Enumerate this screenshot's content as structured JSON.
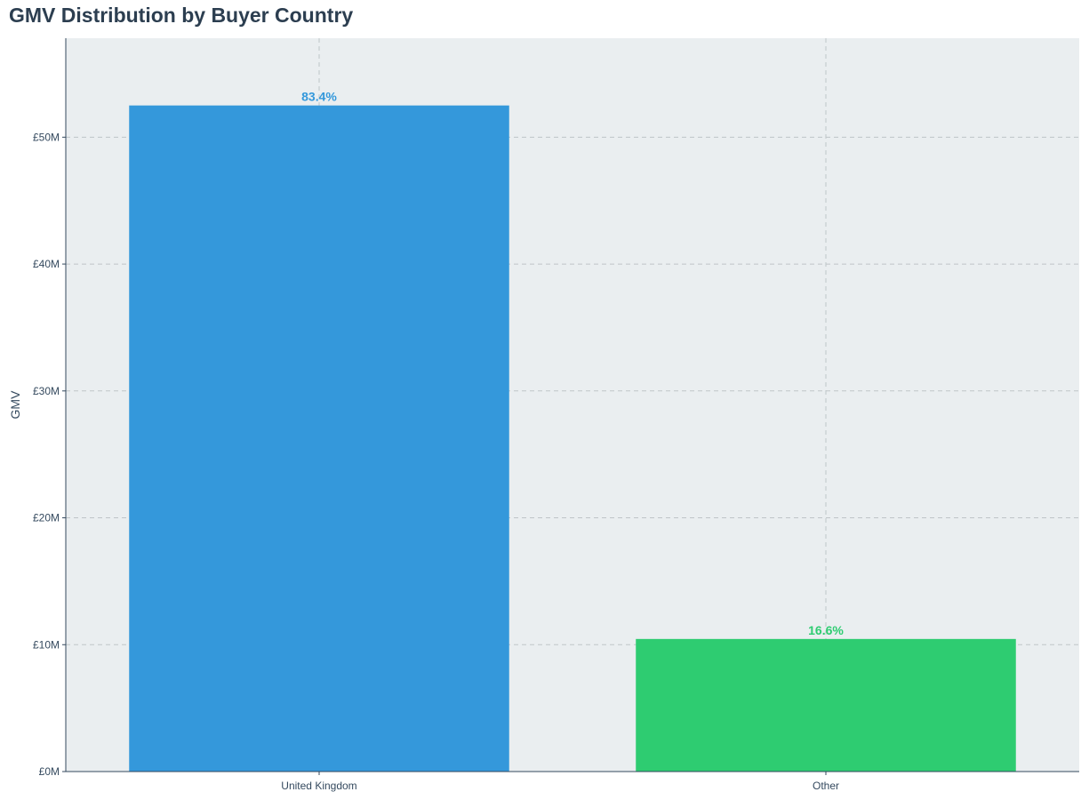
{
  "chart_data": {
    "type": "bar",
    "title": "GMV Distribution by Buyer Country",
    "xlabel": "",
    "ylabel": "GMV",
    "categories": [
      "United Kingdom",
      "Other"
    ],
    "values": [
      52500000,
      10450000
    ],
    "data_labels": [
      "83.4%",
      "16.6%"
    ],
    "bar_colors": [
      "#3498db",
      "#2ecc71"
    ],
    "ylim": [
      0,
      57800000
    ],
    "yticks": [
      0,
      10000000,
      20000000,
      30000000,
      40000000,
      50000000
    ],
    "ytick_labels": [
      "£0M",
      "£10M",
      "£20M",
      "£30M",
      "£40M",
      "£50M"
    ],
    "grid": true,
    "legend": "none",
    "panel_background": "#eaeef0",
    "title_color": "#2c3e50",
    "axis_text_color": "#34495e"
  }
}
